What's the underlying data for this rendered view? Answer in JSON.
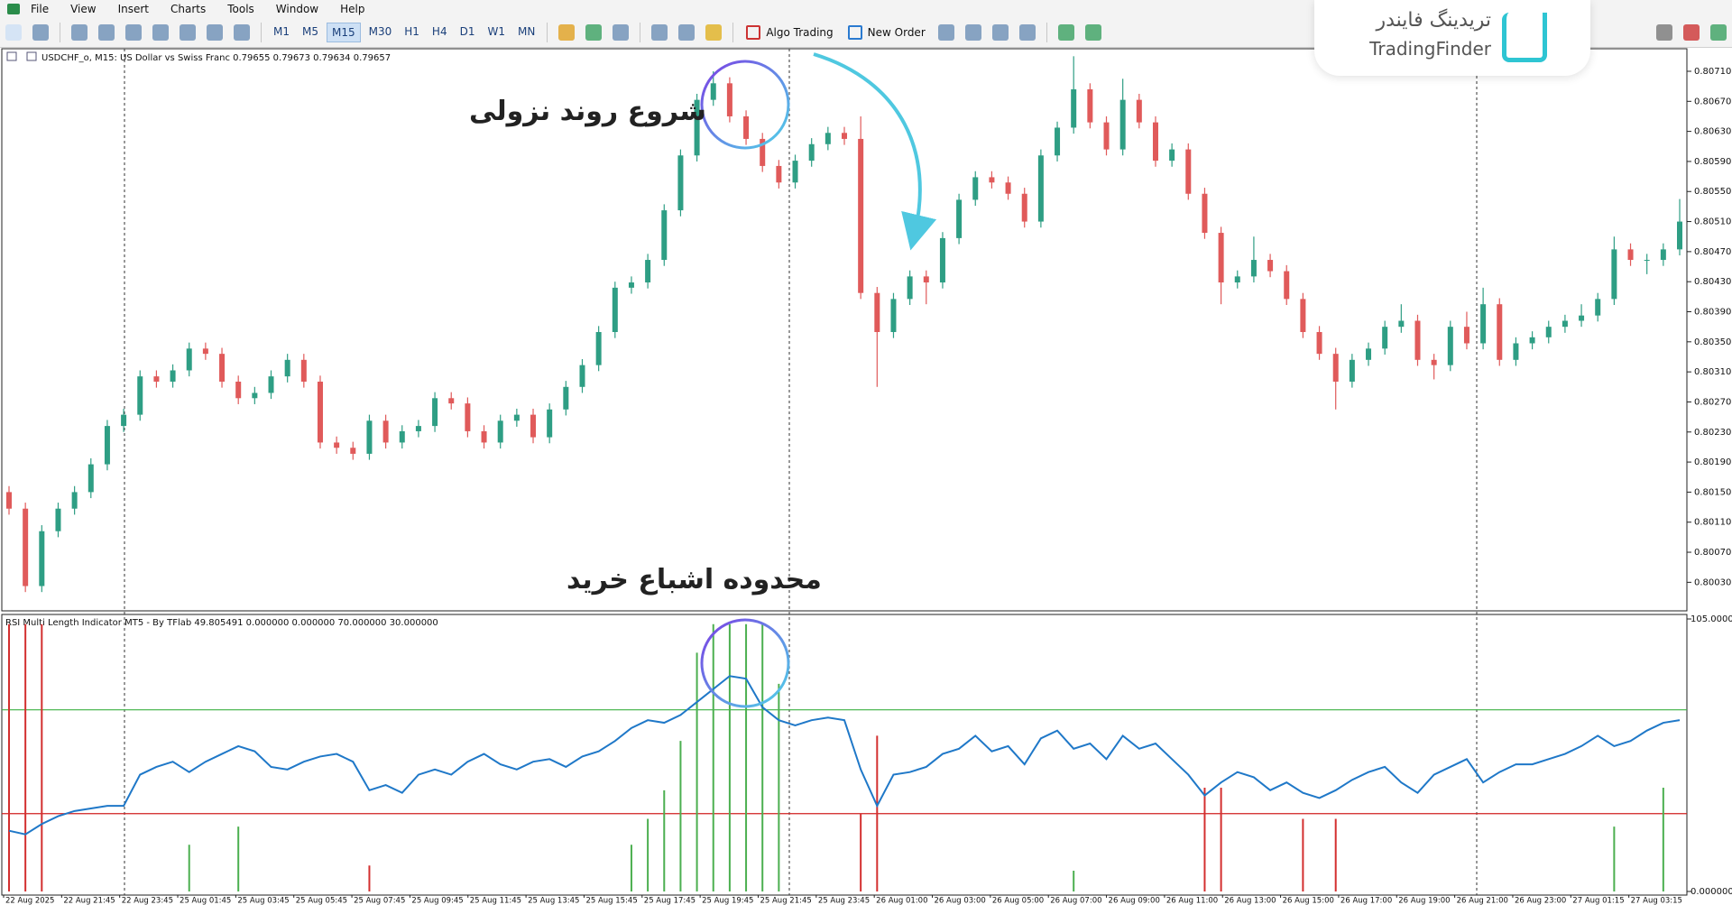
{
  "menu": [
    "File",
    "View",
    "Insert",
    "Charts",
    "Tools",
    "Window",
    "Help"
  ],
  "toolbar": {
    "timeframes": [
      "M1",
      "M5",
      "M15",
      "M30",
      "H1",
      "H4",
      "D1",
      "W1",
      "MN"
    ],
    "algo_trading": "Algo Trading",
    "new_order": "New Order"
  },
  "logo": {
    "persian": "تریدینگ فایندر",
    "latin": "TradingFinder"
  },
  "annotations": [
    "شروع روند نزولی",
    "محدوده اشباع خرید"
  ],
  "chart_data": [
    {
      "type": "candlestick",
      "title": "USDCHF_o, M15:  US Dollar vs Swiss Franc  0.79655 0.79673 0.79634 0.79657",
      "up_color": "#2e9e84",
      "down_color": "#e05a5a",
      "ylim": [
        0.79992,
        0.8074
      ],
      "yticks": [
        {
          "value": 0.8071,
          "label": "0.80710"
        },
        {
          "value": 0.8067,
          "label": "0.80670"
        },
        {
          "value": 0.8063,
          "label": "0.80630"
        },
        {
          "value": 0.8059,
          "label": "0.80590"
        },
        {
          "value": 0.8055,
          "label": "0.80550"
        },
        {
          "value": 0.8051,
          "label": "0.80510"
        },
        {
          "value": 0.8047,
          "label": "0.80470"
        },
        {
          "value": 0.8043,
          "label": "0.80430"
        },
        {
          "value": 0.8039,
          "label": "0.80390"
        },
        {
          "value": 0.8035,
          "label": "0.80350"
        },
        {
          "value": 0.8031,
          "label": "0.80310"
        },
        {
          "value": 0.8027,
          "label": "0.80270"
        },
        {
          "value": 0.8023,
          "label": "0.80230"
        },
        {
          "value": 0.8019,
          "label": "0.80190"
        },
        {
          "value": 0.8015,
          "label": "0.80150"
        },
        {
          "value": 0.8011,
          "label": "0.80110"
        },
        {
          "value": 0.8007,
          "label": "0.80070"
        },
        {
          "value": 0.8003,
          "label": "0.80030"
        }
      ],
      "ohlc": [
        [
          0.8015,
          0.80158,
          0.8012,
          0.80128
        ],
        [
          0.80128,
          0.80136,
          0.80017,
          0.80025
        ],
        [
          0.80025,
          0.80106,
          0.80017,
          0.80098
        ],
        [
          0.80098,
          0.80136,
          0.8009,
          0.80128
        ],
        [
          0.80128,
          0.80158,
          0.8012,
          0.8015
        ],
        [
          0.8015,
          0.80195,
          0.80142,
          0.80187
        ],
        [
          0.80187,
          0.80246,
          0.80179,
          0.80238
        ],
        [
          0.80238,
          0.80261,
          0.8023,
          0.80253
        ],
        [
          0.80253,
          0.80312,
          0.80245,
          0.80304
        ],
        [
          0.80304,
          0.80312,
          0.80289,
          0.80297
        ],
        [
          0.80297,
          0.8032,
          0.80289,
          0.80312
        ],
        [
          0.80312,
          0.80349,
          0.80304,
          0.80341
        ],
        [
          0.80341,
          0.80349,
          0.80326,
          0.80334
        ],
        [
          0.80334,
          0.80342,
          0.80289,
          0.80297
        ],
        [
          0.80297,
          0.80305,
          0.80267,
          0.80275
        ],
        [
          0.80275,
          0.8029,
          0.80267,
          0.80282
        ],
        [
          0.80282,
          0.80312,
          0.80274,
          0.80304
        ],
        [
          0.80304,
          0.80334,
          0.80296,
          0.80326
        ],
        [
          0.80326,
          0.80334,
          0.80289,
          0.80297
        ],
        [
          0.80297,
          0.80305,
          0.80208,
          0.80216
        ],
        [
          0.80216,
          0.80224,
          0.80201,
          0.80209
        ],
        [
          0.80209,
          0.80217,
          0.80193,
          0.80201
        ],
        [
          0.80201,
          0.80253,
          0.80193,
          0.80245
        ],
        [
          0.80245,
          0.80253,
          0.80208,
          0.80216
        ],
        [
          0.80216,
          0.80239,
          0.80208,
          0.80231
        ],
        [
          0.80231,
          0.80246,
          0.80223,
          0.80238
        ],
        [
          0.80238,
          0.80283,
          0.8023,
          0.80275
        ],
        [
          0.80275,
          0.80283,
          0.8026,
          0.80268
        ],
        [
          0.80268,
          0.80276,
          0.80223,
          0.80231
        ],
        [
          0.80231,
          0.80239,
          0.80208,
          0.80216
        ],
        [
          0.80216,
          0.80253,
          0.80208,
          0.80245
        ],
        [
          0.80245,
          0.80261,
          0.80237,
          0.80253
        ],
        [
          0.80253,
          0.80261,
          0.80215,
          0.80223
        ],
        [
          0.80223,
          0.80268,
          0.80215,
          0.8026
        ],
        [
          0.8026,
          0.80298,
          0.80252,
          0.8029
        ],
        [
          0.8029,
          0.80327,
          0.80282,
          0.80319
        ],
        [
          0.80319,
          0.80371,
          0.80311,
          0.80363
        ],
        [
          0.80363,
          0.8043,
          0.80355,
          0.80422
        ],
        [
          0.80422,
          0.80437,
          0.80414,
          0.80429
        ],
        [
          0.80429,
          0.80467,
          0.80421,
          0.80459
        ],
        [
          0.80459,
          0.80533,
          0.80451,
          0.80525
        ],
        [
          0.80525,
          0.80606,
          0.80517,
          0.80598
        ],
        [
          0.80598,
          0.8068,
          0.8059,
          0.80672
        ],
        [
          0.80672,
          0.8071,
          0.80664,
          0.80694
        ],
        [
          0.80694,
          0.80702,
          0.80642,
          0.8065
        ],
        [
          0.8065,
          0.80658,
          0.80612,
          0.8062
        ],
        [
          0.8062,
          0.80628,
          0.80576,
          0.80584
        ],
        [
          0.80584,
          0.80592,
          0.80554,
          0.80562
        ],
        [
          0.80562,
          0.80599,
          0.80554,
          0.80591
        ],
        [
          0.80591,
          0.80621,
          0.80583,
          0.80613
        ],
        [
          0.80613,
          0.80636,
          0.80605,
          0.80628
        ],
        [
          0.80628,
          0.80636,
          0.80612,
          0.8062
        ],
        [
          0.8062,
          0.8065,
          0.80407,
          0.80415
        ],
        [
          0.80415,
          0.80423,
          0.8029,
          0.80363
        ],
        [
          0.80363,
          0.80415,
          0.80355,
          0.80407
        ],
        [
          0.80407,
          0.80445,
          0.80399,
          0.80437
        ],
        [
          0.80437,
          0.80445,
          0.804,
          0.80429
        ],
        [
          0.80429,
          0.80496,
          0.80421,
          0.80488
        ],
        [
          0.80488,
          0.80547,
          0.8048,
          0.80539
        ],
        [
          0.80539,
          0.80577,
          0.80531,
          0.80569
        ],
        [
          0.80569,
          0.80577,
          0.80554,
          0.80562
        ],
        [
          0.80562,
          0.8057,
          0.80539,
          0.80547
        ],
        [
          0.80547,
          0.80555,
          0.80502,
          0.8051
        ],
        [
          0.8051,
          0.80606,
          0.80502,
          0.80598
        ],
        [
          0.80598,
          0.80643,
          0.8059,
          0.80635
        ],
        [
          0.80635,
          0.8073,
          0.80627,
          0.80686
        ],
        [
          0.80686,
          0.80694,
          0.80634,
          0.80642
        ],
        [
          0.80642,
          0.8065,
          0.80598,
          0.80606
        ],
        [
          0.80606,
          0.807,
          0.80598,
          0.80672
        ],
        [
          0.80672,
          0.8068,
          0.80634,
          0.80642
        ],
        [
          0.80642,
          0.8065,
          0.80583,
          0.80591
        ],
        [
          0.80591,
          0.80614,
          0.80583,
          0.80606
        ],
        [
          0.80606,
          0.80614,
          0.80539,
          0.80547
        ],
        [
          0.80547,
          0.80555,
          0.80487,
          0.80495
        ],
        [
          0.80495,
          0.80503,
          0.804,
          0.80429
        ],
        [
          0.80429,
          0.80445,
          0.80421,
          0.80437
        ],
        [
          0.80437,
          0.8049,
          0.80429,
          0.80459
        ],
        [
          0.80459,
          0.80467,
          0.80436,
          0.80444
        ],
        [
          0.80444,
          0.80452,
          0.80399,
          0.80407
        ],
        [
          0.80407,
          0.80415,
          0.80355,
          0.80363
        ],
        [
          0.80363,
          0.80371,
          0.80326,
          0.80334
        ],
        [
          0.80334,
          0.80342,
          0.8026,
          0.80297
        ],
        [
          0.80297,
          0.80334,
          0.80289,
          0.80326
        ],
        [
          0.80326,
          0.80349,
          0.80318,
          0.80341
        ],
        [
          0.80341,
          0.80378,
          0.80333,
          0.8037
        ],
        [
          0.8037,
          0.804,
          0.80362,
          0.80378
        ],
        [
          0.80378,
          0.80386,
          0.80318,
          0.80326
        ],
        [
          0.80326,
          0.80334,
          0.803,
          0.80319
        ],
        [
          0.80319,
          0.80378,
          0.80311,
          0.8037
        ],
        [
          0.8037,
          0.8039,
          0.8034,
          0.80348
        ],
        [
          0.80348,
          0.80422,
          0.8034,
          0.804
        ],
        [
          0.804,
          0.80408,
          0.80318,
          0.80326
        ],
        [
          0.80326,
          0.80356,
          0.80318,
          0.80348
        ],
        [
          0.80348,
          0.80364,
          0.8034,
          0.80356
        ],
        [
          0.80356,
          0.80378,
          0.80348,
          0.8037
        ],
        [
          0.8037,
          0.80386,
          0.80362,
          0.80378
        ],
        [
          0.80378,
          0.804,
          0.8037,
          0.80385
        ],
        [
          0.80385,
          0.80415,
          0.80377,
          0.80407
        ],
        [
          0.80407,
          0.8049,
          0.80399,
          0.80473
        ],
        [
          0.80473,
          0.80481,
          0.80451,
          0.80459
        ],
        [
          0.80459,
          0.80467,
          0.8044,
          0.80459
        ],
        [
          0.80459,
          0.80481,
          0.80451,
          0.80473
        ],
        [
          0.80473,
          0.8054,
          0.80465,
          0.8051
        ]
      ]
    },
    {
      "type": "indicator",
      "title": "RSI Multi Length Indicator MT5 - By TFlab 49.805491 0.000000 0.000000 70.000000 30.000000",
      "ylim": [
        0,
        105
      ],
      "yticks": [
        {
          "value": 105,
          "label": "105.000000"
        },
        {
          "value": 0,
          "label": "0.000000"
        }
      ],
      "levels": [
        {
          "value": 70,
          "color": "#3cb043"
        },
        {
          "value": 30,
          "color": "#d02020"
        }
      ],
      "series": [
        {
          "type": "line",
          "color": "#1f78c8",
          "values": [
            23.4,
            22,
            26,
            29,
            31,
            32,
            33,
            33,
            45,
            48,
            50,
            46,
            50,
            53,
            56,
            54,
            48,
            47,
            50,
            52,
            53,
            50,
            39,
            41,
            38,
            45,
            47,
            45,
            50,
            53,
            49,
            47,
            50,
            51,
            48,
            52,
            54,
            58,
            63,
            66,
            65,
            68,
            73,
            78,
            83,
            82,
            71,
            66,
            64,
            66,
            67,
            66,
            47,
            33,
            45,
            46,
            48,
            53,
            55,
            60,
            54,
            56,
            49,
            59,
            62,
            55,
            57,
            51,
            60,
            55,
            57,
            51,
            45,
            37,
            42,
            46,
            44,
            39,
            42,
            38,
            36,
            39,
            43,
            46,
            48,
            42,
            38,
            45,
            48,
            51,
            42,
            46,
            49,
            49,
            51,
            53,
            56,
            60,
            56,
            58,
            62,
            65,
            66
          ]
        },
        {
          "type": "bar",
          "color": "#4caf50",
          "values": [
            0,
            0,
            0,
            0,
            0,
            0,
            0,
            0,
            0,
            0,
            0,
            18,
            0,
            0,
            25,
            0,
            0,
            0,
            0,
            0,
            0,
            0,
            0,
            0,
            0,
            0,
            0,
            0,
            0,
            0,
            0,
            0,
            0,
            0,
            0,
            0,
            0,
            0,
            18,
            28,
            39,
            58,
            92,
            103,
            103,
            103,
            103,
            80,
            0,
            0,
            0,
            0,
            0,
            0,
            0,
            0,
            0,
            0,
            0,
            0,
            0,
            0,
            0,
            0,
            0,
            8,
            0,
            0,
            0,
            0,
            0,
            0,
            0,
            0,
            0,
            0,
            0,
            0,
            0,
            0,
            0,
            0,
            0,
            0,
            0,
            0,
            0,
            0,
            0,
            0,
            0,
            0,
            0,
            0,
            0,
            0,
            0,
            0,
            25,
            0,
            0,
            40,
            0
          ]
        },
        {
          "type": "bar",
          "color": "#d32f2f",
          "values": [
            103,
            103,
            103,
            0,
            0,
            0,
            0,
            0,
            0,
            0,
            0,
            0,
            0,
            0,
            0,
            0,
            0,
            0,
            0,
            0,
            0,
            0,
            10,
            0,
            0,
            0,
            0,
            0,
            0,
            0,
            0,
            0,
            0,
            0,
            0,
            0,
            0,
            0,
            0,
            0,
            0,
            0,
            0,
            0,
            0,
            0,
            0,
            0,
            0,
            0,
            0,
            0,
            30,
            60,
            0,
            0,
            0,
            0,
            0,
            0,
            0,
            0,
            0,
            0,
            0,
            0,
            0,
            0,
            0,
            0,
            0,
            0,
            0,
            40,
            40,
            0,
            0,
            0,
            0,
            28,
            0,
            28,
            0,
            0,
            0,
            0,
            0,
            0,
            0,
            0,
            0,
            0,
            0,
            0,
            0,
            0,
            0,
            0,
            0,
            0,
            0,
            0,
            0
          ]
        }
      ],
      "time_labels": [
        "22 Aug 2025",
        "22 Aug 21:45",
        "22 Aug 23:45",
        "25 Aug 01:45",
        "25 Aug 03:45",
        "25 Aug 05:45",
        "25 Aug 07:45",
        "25 Aug 09:45",
        "25 Aug 11:45",
        "25 Aug 13:45",
        "25 Aug 15:45",
        "25 Aug 17:45",
        "25 Aug 19:45",
        "25 Aug 21:45",
        "25 Aug 23:45",
        "26 Aug 01:00",
        "26 Aug 03:00",
        "26 Aug 05:00",
        "26 Aug 07:00",
        "26 Aug 09:00",
        "26 Aug 11:00",
        "26 Aug 13:00",
        "26 Aug 15:00",
        "26 Aug 17:00",
        "26 Aug 19:00",
        "26 Aug 21:00",
        "26 Aug 23:00",
        "27 Aug 01:15",
        "27 Aug 03:15"
      ]
    }
  ]
}
